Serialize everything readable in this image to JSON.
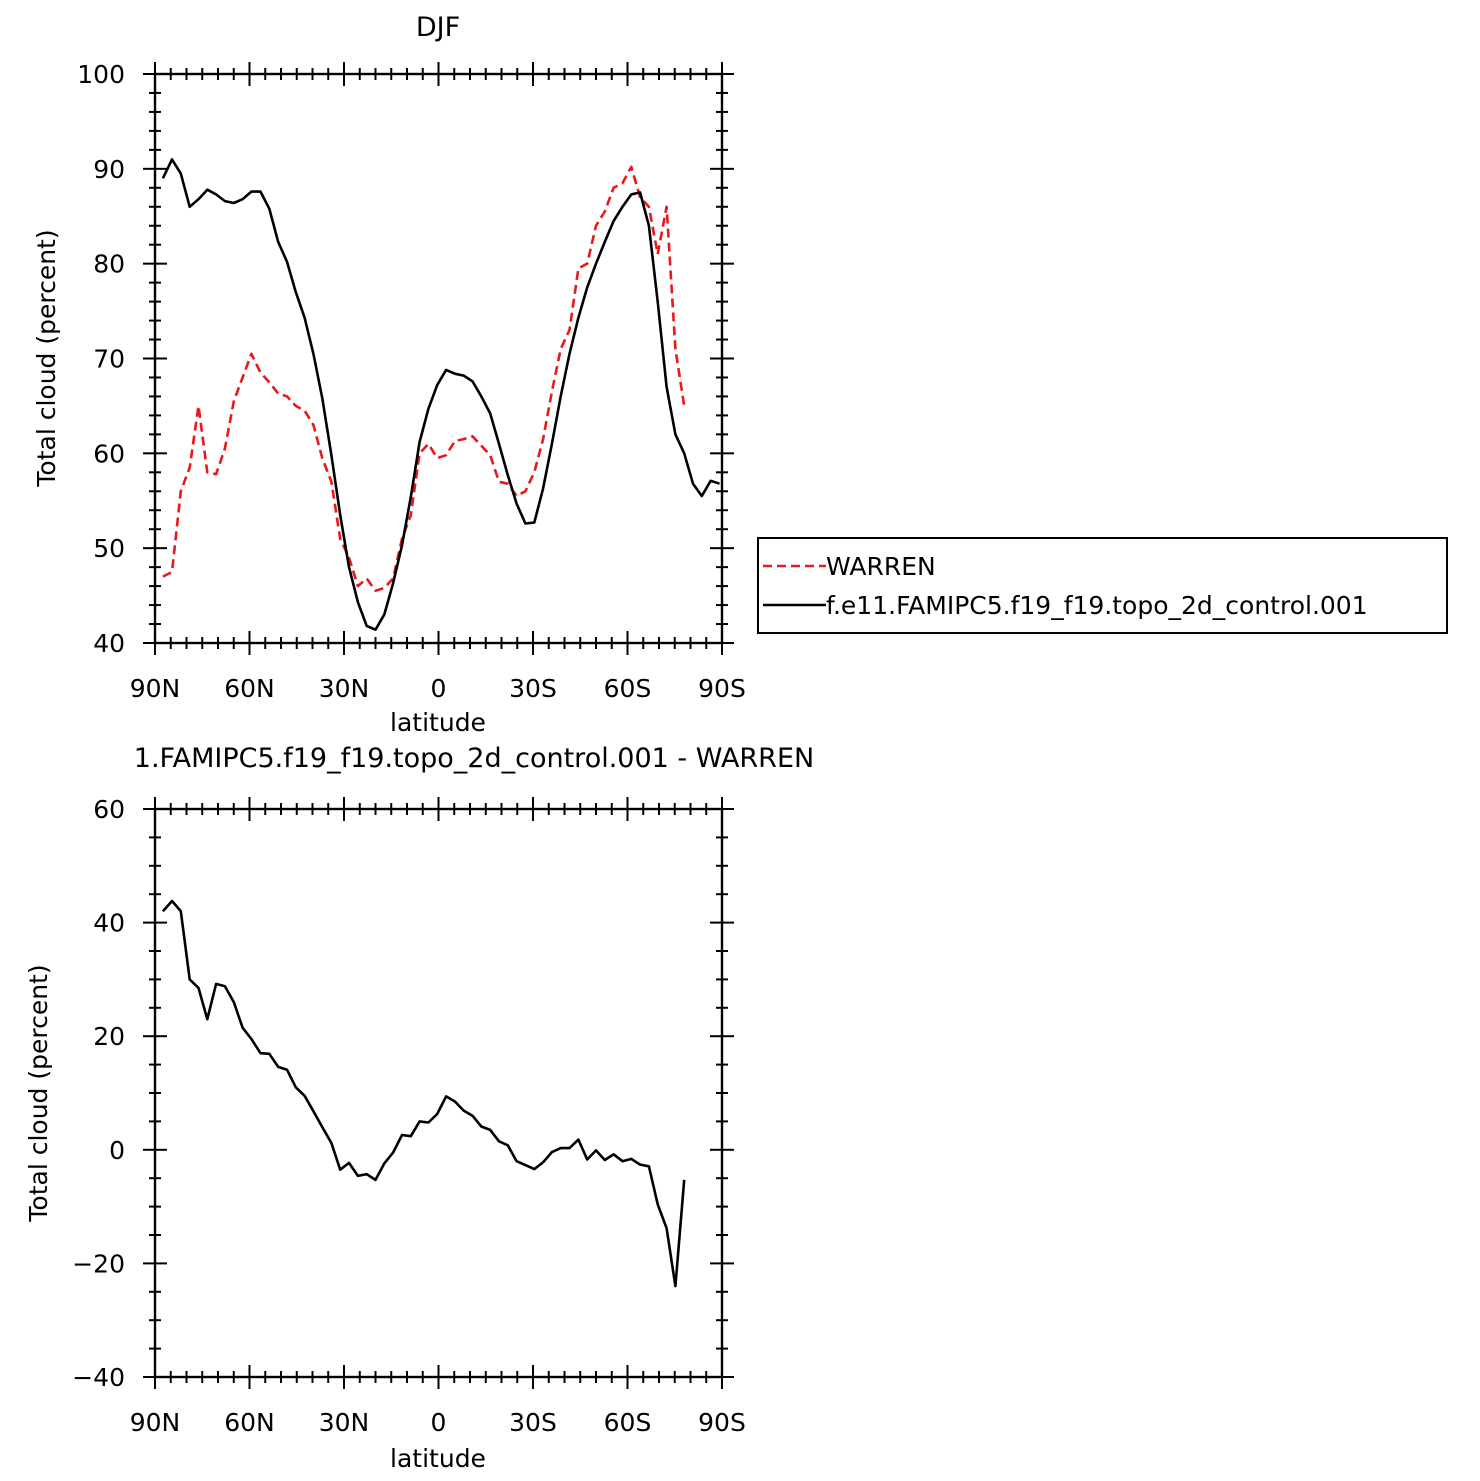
{
  "chart_data": [
    {
      "type": "line",
      "title": "DJF",
      "xlabel": "latitude",
      "ylabel": "Total cloud (percent)",
      "xlim": [
        -90,
        90
      ],
      "ylim": [
        40,
        100
      ],
      "xticks": [
        -90,
        -60,
        -30,
        0,
        30,
        60,
        90
      ],
      "xtick_labels": [
        "90N",
        "60N",
        "30N",
        "0",
        "30S",
        "60S",
        "90S"
      ],
      "yticks": [
        40,
        50,
        60,
        70,
        80,
        90,
        100
      ],
      "ytick_labels": [
        "40",
        "50",
        "60",
        "70",
        "80",
        "90",
        "100"
      ],
      "legend": {
        "placement": "right"
      },
      "series": [
        {
          "name": "WARREN",
          "color": "#e8191b",
          "dash": "dashed",
          "x": [
            -87.5,
            -84.6,
            -81.8,
            -79,
            -76.2,
            -73.4,
            -70.6,
            -67.8,
            -65,
            -62.2,
            -59.4,
            -56.5,
            -53.7,
            -50.9,
            -48.1,
            -45.3,
            -42.5,
            -39.7,
            -36.9,
            -34,
            -31.2,
            -28.4,
            -25.6,
            -22.8,
            -20,
            -17.2,
            -14.4,
            -11.6,
            -8.8,
            -6,
            -3.2,
            -0.4,
            2.4,
            5.2,
            8,
            10.8,
            13.6,
            16.4,
            19.2,
            22,
            24.8,
            27.6,
            30.4,
            33.2,
            36,
            38.8,
            41.6,
            44.4,
            47.2,
            50,
            52.8,
            55.6,
            58.4,
            61.2,
            64,
            66.8,
            69.6,
            72.4,
            75.2,
            78
          ],
          "y": [
            47,
            47.5,
            56,
            58.5,
            65,
            58,
            57.8,
            60.5,
            65.5,
            68,
            70.5,
            68.5,
            67.5,
            66.3,
            66,
            65,
            64.5,
            63,
            59.5,
            57,
            51,
            49,
            46,
            46.8,
            45.5,
            45.8,
            46.8,
            51,
            53.5,
            60,
            61,
            59.5,
            59.8,
            61.3,
            61.5,
            61.8,
            60.8,
            59.8,
            57,
            56.8,
            55.5,
            56,
            58,
            61.5,
            66.5,
            71,
            73,
            79.5,
            80,
            84,
            85.5,
            88,
            88.5,
            90.2,
            87,
            86,
            81,
            86,
            71,
            65
          ]
        },
        {
          "name": "f.e11.FAMIPC5.f19_f19.topo_2d_control.001",
          "color": "#000000",
          "dash": "solid",
          "x": [
            -87.5,
            -84.6,
            -81.8,
            -79,
            -76.2,
            -73.4,
            -70.6,
            -67.8,
            -65,
            -62.2,
            -59.4,
            -56.5,
            -53.7,
            -50.9,
            -48.1,
            -45.3,
            -42.5,
            -39.7,
            -36.9,
            -34,
            -31.2,
            -28.4,
            -25.6,
            -22.8,
            -20,
            -17.2,
            -14.4,
            -11.6,
            -8.8,
            -6,
            -3.2,
            -0.4,
            2.4,
            5.2,
            8,
            10.8,
            13.6,
            16.4,
            19.2,
            22,
            24.8,
            27.6,
            30.4,
            33.2,
            36,
            38.8,
            41.6,
            44.4,
            47.2,
            50,
            52.8,
            55.6,
            58.4,
            61.2,
            64,
            66.8,
            69.6,
            72.4,
            75.2,
            78,
            80.8,
            83.6,
            86.4,
            89.2
          ],
          "y": [
            89,
            91,
            89.5,
            86,
            86.8,
            87.8,
            87.3,
            86.6,
            86.4,
            86.8,
            87.6,
            87.6,
            85.8,
            82.3,
            80.2,
            77,
            74.3,
            70.5,
            65.8,
            59.8,
            53.5,
            48,
            44.3,
            41.8,
            41.4,
            43,
            46.3,
            50.3,
            55.4,
            61.2,
            64.7,
            67.2,
            68.8,
            68.4,
            68.2,
            67.6,
            66,
            64.2,
            61,
            57.7,
            54.7,
            52.6,
            52.7,
            56.3,
            61,
            66,
            70.5,
            74.3,
            77.5,
            80,
            82.3,
            84.5,
            86,
            87.3,
            87.5,
            84,
            76,
            67,
            62,
            60,
            56.8,
            55.5,
            57.1,
            56.8
          ]
        }
      ]
    },
    {
      "type": "line",
      "title": "1.FAMIPC5.f19_f19.topo_2d_control.001 - WARREN",
      "xlabel": "latitude",
      "ylabel": "Total cloud (percent)",
      "xlim": [
        -90,
        90
      ],
      "ylim": [
        -40,
        60
      ],
      "xticks": [
        -90,
        -60,
        -30,
        0,
        30,
        60,
        90
      ],
      "xtick_labels": [
        "90N",
        "60N",
        "30N",
        "0",
        "30S",
        "60S",
        "90S"
      ],
      "yticks": [
        -40,
        -20,
        0,
        20,
        40,
        60
      ],
      "ytick_labels": [
        "−40",
        "−20",
        "0",
        "20",
        "40",
        "60"
      ],
      "series": [
        {
          "color": "#000000",
          "dash": "solid",
          "x": [
            -87.5,
            -84.6,
            -81.8,
            -79,
            -76.2,
            -73.4,
            -70.6,
            -67.8,
            -65,
            -62.2,
            -59.4,
            -56.5,
            -53.7,
            -50.9,
            -48.1,
            -45.3,
            -42.5,
            -39.7,
            -36.9,
            -34,
            -31.2,
            -28.4,
            -25.6,
            -22.8,
            -20,
            -17.2,
            -14.4,
            -11.6,
            -8.8,
            -6,
            -3.2,
            -0.4,
            2.4,
            5.2,
            8,
            10.8,
            13.6,
            16.4,
            19.2,
            22,
            24.8,
            27.6,
            30.4,
            33.2,
            36,
            38.8,
            41.6,
            44.4,
            47.2,
            50,
            52.8,
            55.6,
            58.4,
            61.2,
            64,
            66.8,
            69.6,
            72.4,
            75.2,
            78
          ],
          "y": [
            42,
            43.8,
            42,
            30,
            28.5,
            23,
            29.2,
            28.8,
            26,
            21.5,
            19.5,
            17,
            16.9,
            14.6,
            14.1,
            11,
            9.5,
            6.8,
            4,
            1.2,
            -3.5,
            -2.3,
            -4.6,
            -4.3,
            -5.3,
            -2.4,
            -0.5,
            2.6,
            2.4,
            5,
            4.8,
            6.3,
            9.4,
            8.5,
            6.9,
            6,
            4.1,
            3.5,
            1.5,
            0.8,
            -2,
            -2.7,
            -3.4,
            -2.2,
            -0.4,
            0.3,
            0.3,
            1.8,
            -1.7,
            -0.1,
            -1.8,
            -0.8,
            -2,
            -1.6,
            -2.6,
            -2.9,
            -9.6,
            -13.8,
            -24,
            -5.3
          ]
        }
      ]
    }
  ]
}
